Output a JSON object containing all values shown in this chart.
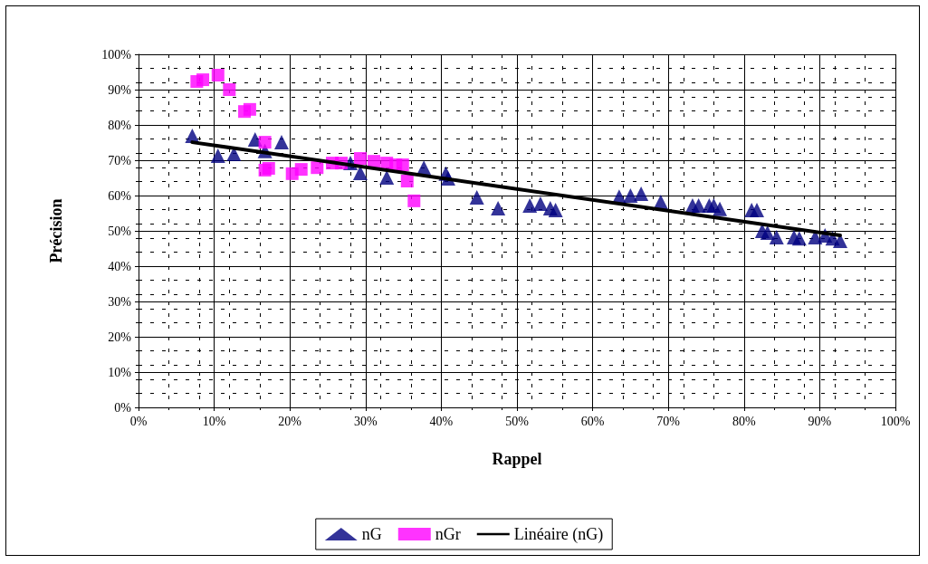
{
  "chart_data": {
    "type": "scatter",
    "xlabel": "Rappel",
    "ylabel": "Précision",
    "xlim": [
      0,
      100
    ],
    "ylim": [
      0,
      100
    ],
    "xticks": [
      {
        "value": 0,
        "label": "0%"
      },
      {
        "value": 10,
        "label": "10%"
      },
      {
        "value": 20,
        "label": "20%"
      },
      {
        "value": 30,
        "label": "30%"
      },
      {
        "value": 40,
        "label": "40%"
      },
      {
        "value": 50,
        "label": "50%"
      },
      {
        "value": 60,
        "label": "60%"
      },
      {
        "value": 70,
        "label": "70%"
      },
      {
        "value": 80,
        "label": "80%"
      },
      {
        "value": 90,
        "label": "90%"
      },
      {
        "value": 100,
        "label": "100%"
      }
    ],
    "yticks": [
      {
        "value": 0,
        "label": "0%"
      },
      {
        "value": 10,
        "label": "10%"
      },
      {
        "value": 20,
        "label": "20%"
      },
      {
        "value": 30,
        "label": "30%"
      },
      {
        "value": 40,
        "label": "40%"
      },
      {
        "value": 50,
        "label": "50%"
      },
      {
        "value": 60,
        "label": "60%"
      },
      {
        "value": 70,
        "label": "70%"
      },
      {
        "value": 80,
        "label": "80%"
      },
      {
        "value": 90,
        "label": "90%"
      },
      {
        "value": 100,
        "label": "100%"
      }
    ],
    "grid": true,
    "legend": "bottom",
    "series": [
      {
        "name": "nG",
        "type": "scatter",
        "marker": "triangle",
        "color": "#000080",
        "x": [
          7.1,
          10.5,
          12.6,
          15.4,
          16.7,
          18.9,
          28.0,
          29.3,
          32.8,
          37.7,
          40.6,
          40.9,
          44.7,
          47.5,
          51.7,
          53.1,
          54.4,
          55.1,
          63.5,
          65.0,
          66.4,
          69.0,
          73.2,
          74.0,
          75.4,
          76.0,
          76.8,
          81.0,
          81.7,
          82.4,
          83.1,
          84.3,
          86.6,
          87.3,
          89.4,
          90.7,
          91.7,
          92.7
        ],
        "values": [
          76.9,
          71.3,
          71.8,
          75.9,
          72.6,
          75.1,
          69.2,
          66.4,
          65.1,
          67.9,
          66.2,
          64.9,
          59.5,
          56.4,
          57.2,
          57.7,
          56.4,
          55.9,
          59.7,
          60.0,
          60.5,
          58.2,
          57.2,
          57.2,
          57.2,
          57.2,
          56.2,
          55.9,
          55.9,
          50.0,
          49.5,
          48.2,
          48.2,
          47.9,
          48.2,
          48.7,
          47.9,
          47.2
        ]
      },
      {
        "name": "nGr",
        "type": "scatter",
        "marker": "square",
        "color": "#ff00ff",
        "x": [
          7.7,
          8.5,
          10.5,
          12.0,
          14.0,
          14.7,
          16.7,
          17.2,
          16.7,
          20.3,
          21.5,
          23.6,
          25.6,
          26.8,
          29.3,
          31.1,
          32.8,
          34.0,
          34.9,
          35.5,
          36.4
        ],
        "values": [
          92.3,
          92.8,
          94.1,
          90.0,
          83.8,
          84.4,
          75.1,
          67.7,
          67.2,
          66.2,
          67.4,
          67.9,
          69.2,
          69.2,
          70.5,
          69.7,
          69.2,
          68.7,
          68.7,
          64.1,
          58.5
        ]
      },
      {
        "name": "Linéaire (nG)",
        "type": "line",
        "marker": "none",
        "line_style": "solid",
        "color": "#000000",
        "x": [
          7.1,
          92.7
        ],
        "values": [
          75.1,
          48.7
        ]
      }
    ]
  }
}
